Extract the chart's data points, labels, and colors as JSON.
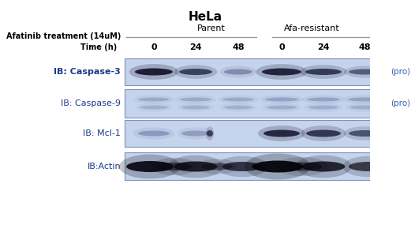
{
  "title": "HeLa",
  "title_fontsize": 11,
  "fig_width": 5.21,
  "fig_height": 2.99,
  "bg_color": "#ffffff",
  "panel_bg": "#c5d3ec",
  "panel_border": "#8090b8",
  "group1_label": "Parent",
  "group2_label": "Afa-resistant",
  "treatment_label": "Afatinib treatment (14uM)",
  "time_label": "Time (h)",
  "time_points": [
    "0",
    "24",
    "48"
  ],
  "rows": [
    {
      "label": "IB: Caspase-3",
      "pro_label": "(pro)",
      "bold": true
    },
    {
      "label": "IB: Caspase-9",
      "pro_label": "(pro)",
      "bold": false
    },
    {
      "label": "IB: Mcl-1",
      "pro_label": "",
      "bold": false
    },
    {
      "label": "IB:Actin",
      "pro_label": "",
      "bold": false
    }
  ],
  "label_color": "#1a3a8a",
  "pro_color": "#3a60b0",
  "line_color": "#999999",
  "band_dark": "#0d0d25",
  "band_medium": "#1a2550",
  "band_light": "#3a4878"
}
